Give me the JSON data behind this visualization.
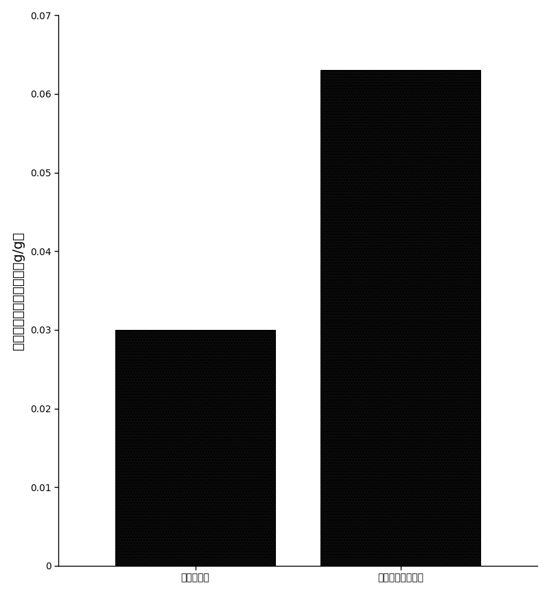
{
  "categories": [
    "未改性海绵",
    "二氧化馒改性海绵"
  ],
  "values": [
    0.03,
    0.063
  ],
  "bar_facecolor": "#0a0a0a",
  "bar_edgecolor": "#000000",
  "ylabel_chars": [
    "海",
    "绵",
    "吸",
    "附",
    "纳",
    "米",
    "粉",
    "尘",
    "的",
    "量",
    "（",
    "g",
    "/",
    "g",
    "）"
  ],
  "ylim": [
    0,
    0.07
  ],
  "yticks": [
    0,
    0.01,
    0.02,
    0.03,
    0.04,
    0.05,
    0.06,
    0.07
  ],
  "bar_width": 0.35,
  "figsize": [
    8.0,
    8.66
  ],
  "dpi": 100,
  "background_color": "#ffffff",
  "ylabel_fontsize": 14,
  "tick_fontsize": 13,
  "xlabel_fontsize": 14
}
